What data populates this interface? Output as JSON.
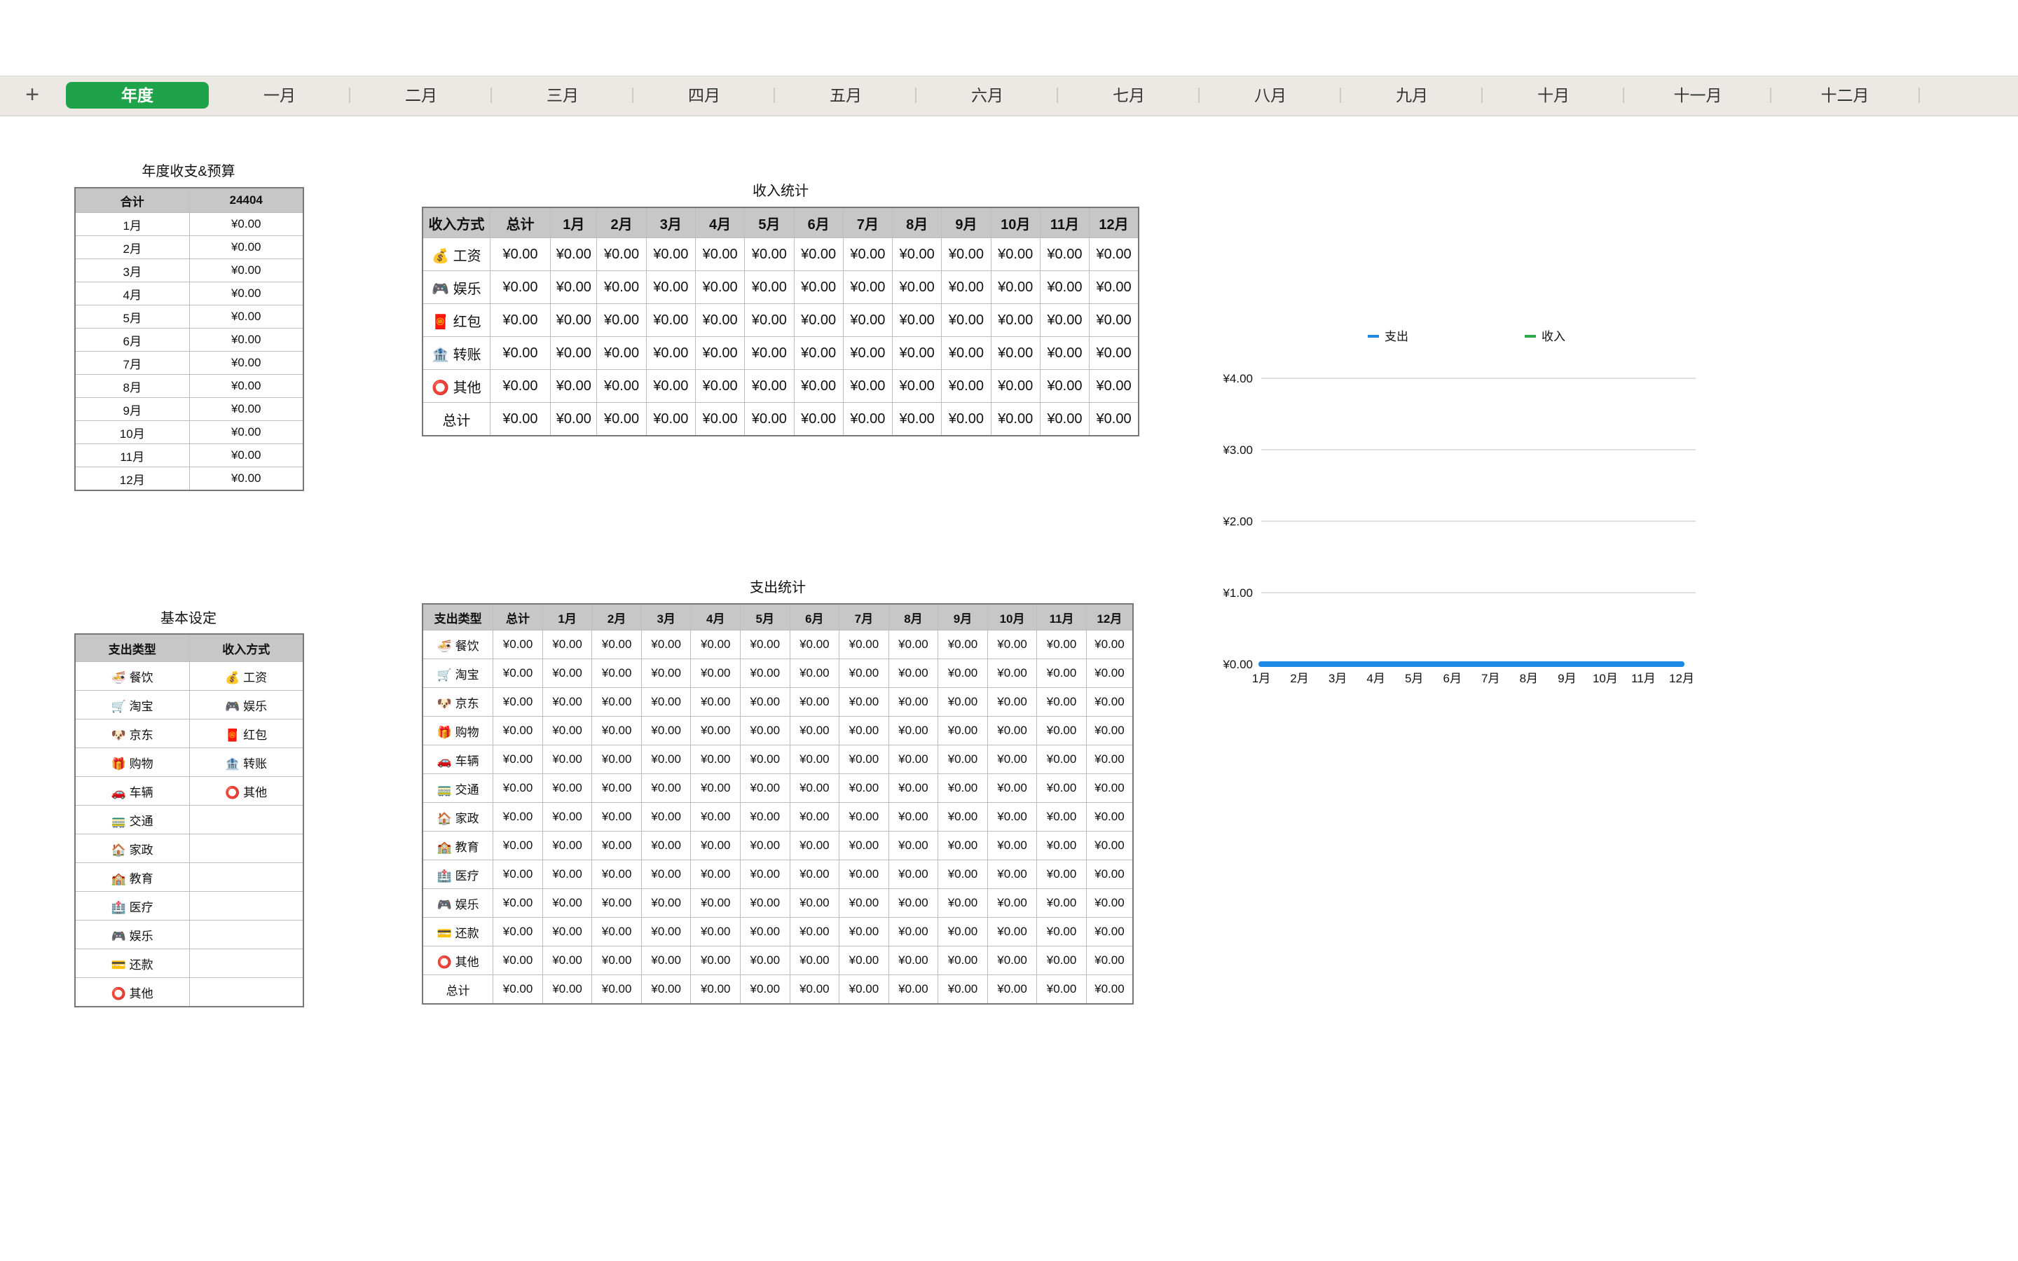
{
  "tabs": {
    "add_icon": "+",
    "items": [
      "年度",
      "一月",
      "二月",
      "三月",
      "四月",
      "五月",
      "六月",
      "七月",
      "八月",
      "九月",
      "十月",
      "十一月",
      "十二月"
    ],
    "active_index": 0,
    "accent_color": "#1ea34b"
  },
  "budget": {
    "title": "年度收支&预算",
    "header": [
      "合计",
      "24404"
    ],
    "rows": [
      [
        "1月",
        "¥0.00"
      ],
      [
        "2月",
        "¥0.00"
      ],
      [
        "3月",
        "¥0.00"
      ],
      [
        "4月",
        "¥0.00"
      ],
      [
        "5月",
        "¥0.00"
      ],
      [
        "6月",
        "¥0.00"
      ],
      [
        "7月",
        "¥0.00"
      ],
      [
        "8月",
        "¥0.00"
      ],
      [
        "9月",
        "¥0.00"
      ],
      [
        "10月",
        "¥0.00"
      ],
      [
        "11月",
        "¥0.00"
      ],
      [
        "12月",
        "¥0.00"
      ]
    ]
  },
  "settings": {
    "title": "基本设定",
    "header": [
      "支出类型",
      "收入方式"
    ],
    "rows": [
      [
        "🍜 餐饮",
        "💰 工资"
      ],
      [
        "🛒 淘宝",
        "🎮 娱乐"
      ],
      [
        "🐶 京东",
        "🧧 红包"
      ],
      [
        "🎁 购物",
        "🏦 转账"
      ],
      [
        "🚗 车辆",
        "⭕ 其他"
      ],
      [
        "🚃 交通",
        ""
      ],
      [
        "🏠 家政",
        ""
      ],
      [
        "🏫 教育",
        ""
      ],
      [
        "🏥 医疗",
        ""
      ],
      [
        "🎮 娱乐",
        ""
      ],
      [
        "💳 还款",
        ""
      ],
      [
        "⭕ 其他",
        ""
      ]
    ]
  },
  "income": {
    "title": "收入统计",
    "header": [
      "收入方式",
      "总计",
      "1月",
      "2月",
      "3月",
      "4月",
      "5月",
      "6月",
      "7月",
      "8月",
      "9月",
      "10月",
      "11月",
      "12月"
    ],
    "rows": [
      [
        "💰 工资",
        "¥0.00",
        "¥0.00",
        "¥0.00",
        "¥0.00",
        "¥0.00",
        "¥0.00",
        "¥0.00",
        "¥0.00",
        "¥0.00",
        "¥0.00",
        "¥0.00",
        "¥0.00",
        "¥0.00"
      ],
      [
        "🎮 娱乐",
        "¥0.00",
        "¥0.00",
        "¥0.00",
        "¥0.00",
        "¥0.00",
        "¥0.00",
        "¥0.00",
        "¥0.00",
        "¥0.00",
        "¥0.00",
        "¥0.00",
        "¥0.00",
        "¥0.00"
      ],
      [
        "🧧 红包",
        "¥0.00",
        "¥0.00",
        "¥0.00",
        "¥0.00",
        "¥0.00",
        "¥0.00",
        "¥0.00",
        "¥0.00",
        "¥0.00",
        "¥0.00",
        "¥0.00",
        "¥0.00",
        "¥0.00"
      ],
      [
        "🏦 转账",
        "¥0.00",
        "¥0.00",
        "¥0.00",
        "¥0.00",
        "¥0.00",
        "¥0.00",
        "¥0.00",
        "¥0.00",
        "¥0.00",
        "¥0.00",
        "¥0.00",
        "¥0.00",
        "¥0.00"
      ],
      [
        "⭕ 其他",
        "¥0.00",
        "¥0.00",
        "¥0.00",
        "¥0.00",
        "¥0.00",
        "¥0.00",
        "¥0.00",
        "¥0.00",
        "¥0.00",
        "¥0.00",
        "¥0.00",
        "¥0.00",
        "¥0.00"
      ],
      [
        "总计",
        "¥0.00",
        "¥0.00",
        "¥0.00",
        "¥0.00",
        "¥0.00",
        "¥0.00",
        "¥0.00",
        "¥0.00",
        "¥0.00",
        "¥0.00",
        "¥0.00",
        "¥0.00",
        "¥0.00"
      ]
    ]
  },
  "expense": {
    "title": "支出统计",
    "header": [
      "支出类型",
      "总计",
      "1月",
      "2月",
      "3月",
      "4月",
      "5月",
      "6月",
      "7月",
      "8月",
      "9月",
      "10月",
      "11月",
      "12月"
    ],
    "rows": [
      [
        "🍜 餐饮",
        "¥0.00",
        "¥0.00",
        "¥0.00",
        "¥0.00",
        "¥0.00",
        "¥0.00",
        "¥0.00",
        "¥0.00",
        "¥0.00",
        "¥0.00",
        "¥0.00",
        "¥0.00",
        "¥0.00"
      ],
      [
        "🛒 淘宝",
        "¥0.00",
        "¥0.00",
        "¥0.00",
        "¥0.00",
        "¥0.00",
        "¥0.00",
        "¥0.00",
        "¥0.00",
        "¥0.00",
        "¥0.00",
        "¥0.00",
        "¥0.00",
        "¥0.00"
      ],
      [
        "🐶 京东",
        "¥0.00",
        "¥0.00",
        "¥0.00",
        "¥0.00",
        "¥0.00",
        "¥0.00",
        "¥0.00",
        "¥0.00",
        "¥0.00",
        "¥0.00",
        "¥0.00",
        "¥0.00",
        "¥0.00"
      ],
      [
        "🎁 购物",
        "¥0.00",
        "¥0.00",
        "¥0.00",
        "¥0.00",
        "¥0.00",
        "¥0.00",
        "¥0.00",
        "¥0.00",
        "¥0.00",
        "¥0.00",
        "¥0.00",
        "¥0.00",
        "¥0.00"
      ],
      [
        "🚗 车辆",
        "¥0.00",
        "¥0.00",
        "¥0.00",
        "¥0.00",
        "¥0.00",
        "¥0.00",
        "¥0.00",
        "¥0.00",
        "¥0.00",
        "¥0.00",
        "¥0.00",
        "¥0.00",
        "¥0.00"
      ],
      [
        "🚃 交通",
        "¥0.00",
        "¥0.00",
        "¥0.00",
        "¥0.00",
        "¥0.00",
        "¥0.00",
        "¥0.00",
        "¥0.00",
        "¥0.00",
        "¥0.00",
        "¥0.00",
        "¥0.00",
        "¥0.00"
      ],
      [
        "🏠 家政",
        "¥0.00",
        "¥0.00",
        "¥0.00",
        "¥0.00",
        "¥0.00",
        "¥0.00",
        "¥0.00",
        "¥0.00",
        "¥0.00",
        "¥0.00",
        "¥0.00",
        "¥0.00",
        "¥0.00"
      ],
      [
        "🏫 教育",
        "¥0.00",
        "¥0.00",
        "¥0.00",
        "¥0.00",
        "¥0.00",
        "¥0.00",
        "¥0.00",
        "¥0.00",
        "¥0.00",
        "¥0.00",
        "¥0.00",
        "¥0.00",
        "¥0.00"
      ],
      [
        "🏥 医疗",
        "¥0.00",
        "¥0.00",
        "¥0.00",
        "¥0.00",
        "¥0.00",
        "¥0.00",
        "¥0.00",
        "¥0.00",
        "¥0.00",
        "¥0.00",
        "¥0.00",
        "¥0.00",
        "¥0.00"
      ],
      [
        "🎮 娱乐",
        "¥0.00",
        "¥0.00",
        "¥0.00",
        "¥0.00",
        "¥0.00",
        "¥0.00",
        "¥0.00",
        "¥0.00",
        "¥0.00",
        "¥0.00",
        "¥0.00",
        "¥0.00",
        "¥0.00"
      ],
      [
        "💳 还款",
        "¥0.00",
        "¥0.00",
        "¥0.00",
        "¥0.00",
        "¥0.00",
        "¥0.00",
        "¥0.00",
        "¥0.00",
        "¥0.00",
        "¥0.00",
        "¥0.00",
        "¥0.00",
        "¥0.00"
      ],
      [
        "⭕ 其他",
        "¥0.00",
        "¥0.00",
        "¥0.00",
        "¥0.00",
        "¥0.00",
        "¥0.00",
        "¥0.00",
        "¥0.00",
        "¥0.00",
        "¥0.00",
        "¥0.00",
        "¥0.00",
        "¥0.00"
      ],
      [
        "总计",
        "¥0.00",
        "¥0.00",
        "¥0.00",
        "¥0.00",
        "¥0.00",
        "¥0.00",
        "¥0.00",
        "¥0.00",
        "¥0.00",
        "¥0.00",
        "¥0.00",
        "¥0.00",
        "¥0.00"
      ]
    ]
  },
  "chart_data": {
    "type": "line",
    "title": "",
    "xlabel": "",
    "ylabel": "",
    "categories": [
      "1月",
      "2月",
      "3月",
      "4月",
      "5月",
      "6月",
      "7月",
      "8月",
      "9月",
      "10月",
      "11月",
      "12月"
    ],
    "y_tick_labels": [
      "¥0.00",
      "¥1.00",
      "¥2.00",
      "¥3.00",
      "¥4.00"
    ],
    "ylim": [
      0,
      4
    ],
    "grid": true,
    "legend_position": "top",
    "series": [
      {
        "name": "支出",
        "color": "#1e88e5",
        "values": [
          0,
          0,
          0,
          0,
          0,
          0,
          0,
          0,
          0,
          0,
          0,
          0
        ]
      },
      {
        "name": "收入",
        "color": "#2eaa4a",
        "values": [
          0,
          0,
          0,
          0,
          0,
          0,
          0,
          0,
          0,
          0,
          0,
          0
        ]
      }
    ]
  }
}
